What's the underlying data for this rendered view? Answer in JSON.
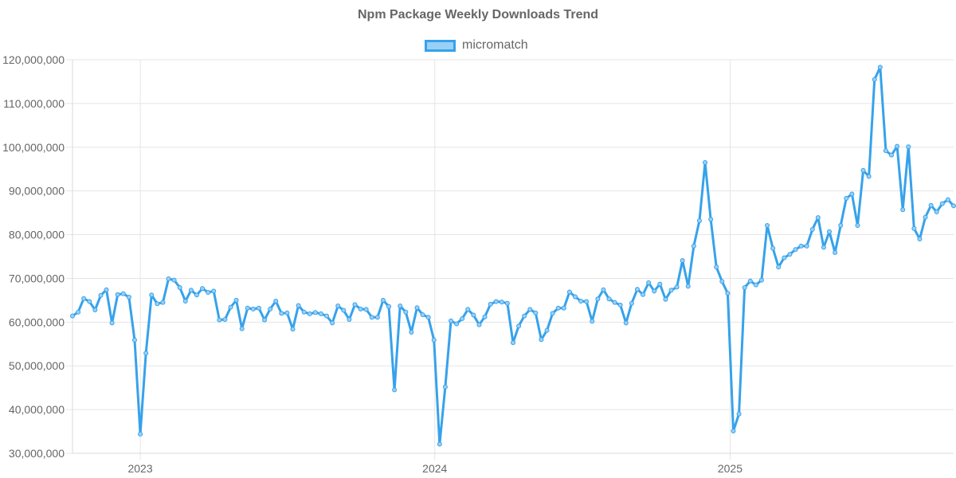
{
  "chart_data": {
    "type": "line",
    "title": "Npm Package Weekly Downloads Trend",
    "xlabel": "",
    "ylabel": "",
    "x_tick_labels": [
      "2023",
      "2024",
      "2025"
    ],
    "y_tick_labels": [
      "30,000,000",
      "40,000,000",
      "50,000,000",
      "60,000,000",
      "70,000,000",
      "80,000,000",
      "90,000,000",
      "100,000,000",
      "110,000,000",
      "120,000,000"
    ],
    "ylim": [
      30000000,
      120000000
    ],
    "xlim": [
      "2022-10-09",
      "2025-10-05"
    ],
    "grid": true,
    "legend_position": "top",
    "colors": {
      "line": "#36a2eb",
      "fill": "#9ad0f5",
      "grid": "#e5e5e5",
      "text": "#666666"
    },
    "series": [
      {
        "name": "micromatch",
        "x": [
          "2022-10-09",
          "2022-10-16",
          "2022-10-23",
          "2022-10-30",
          "2022-11-06",
          "2022-11-13",
          "2022-11-20",
          "2022-11-27",
          "2022-12-04",
          "2022-12-11",
          "2022-12-18",
          "2022-12-25",
          "2023-01-01",
          "2023-01-08",
          "2023-01-15",
          "2023-01-22",
          "2023-01-29",
          "2023-02-05",
          "2023-02-12",
          "2023-02-19",
          "2023-02-26",
          "2023-03-05",
          "2023-03-12",
          "2023-03-19",
          "2023-03-26",
          "2023-04-02",
          "2023-04-09",
          "2023-04-16",
          "2023-04-23",
          "2023-04-30",
          "2023-05-07",
          "2023-05-14",
          "2023-05-21",
          "2023-05-28",
          "2023-06-04",
          "2023-06-11",
          "2023-06-18",
          "2023-06-25",
          "2023-07-02",
          "2023-07-09",
          "2023-07-16",
          "2023-07-23",
          "2023-07-30",
          "2023-08-06",
          "2023-08-13",
          "2023-08-20",
          "2023-08-27",
          "2023-09-03",
          "2023-09-10",
          "2023-09-17",
          "2023-09-24",
          "2023-10-01",
          "2023-10-08",
          "2023-10-15",
          "2023-10-22",
          "2023-10-29",
          "2023-11-05",
          "2023-11-12",
          "2023-11-19",
          "2023-11-26",
          "2023-12-03",
          "2023-12-10",
          "2023-12-17",
          "2023-12-24",
          "2023-12-31",
          "2024-01-07",
          "2024-01-14",
          "2024-01-21",
          "2024-01-28",
          "2024-02-04",
          "2024-02-11",
          "2024-02-18",
          "2024-02-25",
          "2024-03-03",
          "2024-03-10",
          "2024-03-17",
          "2024-03-24",
          "2024-03-31",
          "2024-04-07",
          "2024-04-14",
          "2024-04-21",
          "2024-04-28",
          "2024-05-05",
          "2024-05-12",
          "2024-05-19",
          "2024-05-26",
          "2024-06-02",
          "2024-06-09",
          "2024-06-16",
          "2024-06-23",
          "2024-06-30",
          "2024-07-07",
          "2024-07-14",
          "2024-07-21",
          "2024-07-28",
          "2024-08-04",
          "2024-08-11",
          "2024-08-18",
          "2024-08-25",
          "2024-09-01",
          "2024-09-08",
          "2024-09-15",
          "2024-09-22",
          "2024-09-29",
          "2024-10-06",
          "2024-10-13",
          "2024-10-20",
          "2024-10-27",
          "2024-11-03",
          "2024-11-10",
          "2024-11-17",
          "2024-11-24",
          "2024-12-01",
          "2024-12-08",
          "2024-12-15",
          "2024-12-22",
          "2024-12-29",
          "2025-01-05",
          "2025-01-12",
          "2025-01-19",
          "2025-01-26",
          "2025-02-02",
          "2025-02-09",
          "2025-02-16",
          "2025-02-23",
          "2025-03-02",
          "2025-03-09",
          "2025-03-16",
          "2025-03-23",
          "2025-03-30",
          "2025-04-06",
          "2025-04-13",
          "2025-04-20",
          "2025-04-27",
          "2025-05-04",
          "2025-05-11",
          "2025-05-18",
          "2025-05-25",
          "2025-06-01",
          "2025-06-08",
          "2025-06-15",
          "2025-06-22",
          "2025-06-29",
          "2025-07-06",
          "2025-07-13",
          "2025-07-20",
          "2025-07-27",
          "2025-08-03",
          "2025-08-10",
          "2025-08-17",
          "2025-08-24",
          "2025-08-31",
          "2025-09-07",
          "2025-09-14",
          "2025-09-21",
          "2025-09-28",
          "2025-10-05"
        ],
        "values": [
          61400000,
          62300000,
          65400000,
          64700000,
          62800000,
          66100000,
          67400000,
          59800000,
          66300000,
          66500000,
          65700000,
          55900000,
          34400000,
          52900000,
          66200000,
          64200000,
          64500000,
          69900000,
          69600000,
          67900000,
          64800000,
          67300000,
          66200000,
          67700000,
          66800000,
          67100000,
          60500000,
          60600000,
          63400000,
          65000000,
          58500000,
          63200000,
          63000000,
          63200000,
          60500000,
          63000000,
          64800000,
          62000000,
          62100000,
          58400000,
          63800000,
          62300000,
          61900000,
          62200000,
          61900000,
          61400000,
          59800000,
          63700000,
          62700000,
          60600000,
          64000000,
          63000000,
          62900000,
          61100000,
          61100000,
          65000000,
          63600000,
          44500000,
          63700000,
          62300000,
          57700000,
          63300000,
          61700000,
          61100000,
          55900000,
          32100000,
          45200000,
          60300000,
          59600000,
          60800000,
          62900000,
          61600000,
          59400000,
          61200000,
          64100000,
          64700000,
          64600000,
          64300000,
          55300000,
          59100000,
          61400000,
          62900000,
          62100000,
          56000000,
          58100000,
          62000000,
          63200000,
          63200000,
          66900000,
          65800000,
          64800000,
          64700000,
          60200000,
          65300000,
          67400000,
          65300000,
          64500000,
          63900000,
          59800000,
          64300000,
          67500000,
          66300000,
          69000000,
          67100000,
          68700000,
          65200000,
          67300000,
          68000000,
          74100000,
          68200000,
          77400000,
          83200000,
          96500000,
          83500000,
          72600000,
          69300000,
          66600000,
          35100000,
          39000000,
          67900000,
          69400000,
          68500000,
          69600000,
          82100000,
          76900000,
          72600000,
          74700000,
          75500000,
          76600000,
          77400000,
          77400000,
          81200000,
          83900000,
          77100000,
          80700000,
          75900000,
          82100000,
          88300000,
          89300000,
          82100000,
          94700000,
          93300000,
          115500000,
          118300000,
          99200000,
          98200000,
          100200000,
          85700000,
          100100000,
          81400000,
          79000000,
          84000000,
          86700000,
          85200000,
          87100000,
          88000000,
          86600000
        ]
      }
    ]
  }
}
